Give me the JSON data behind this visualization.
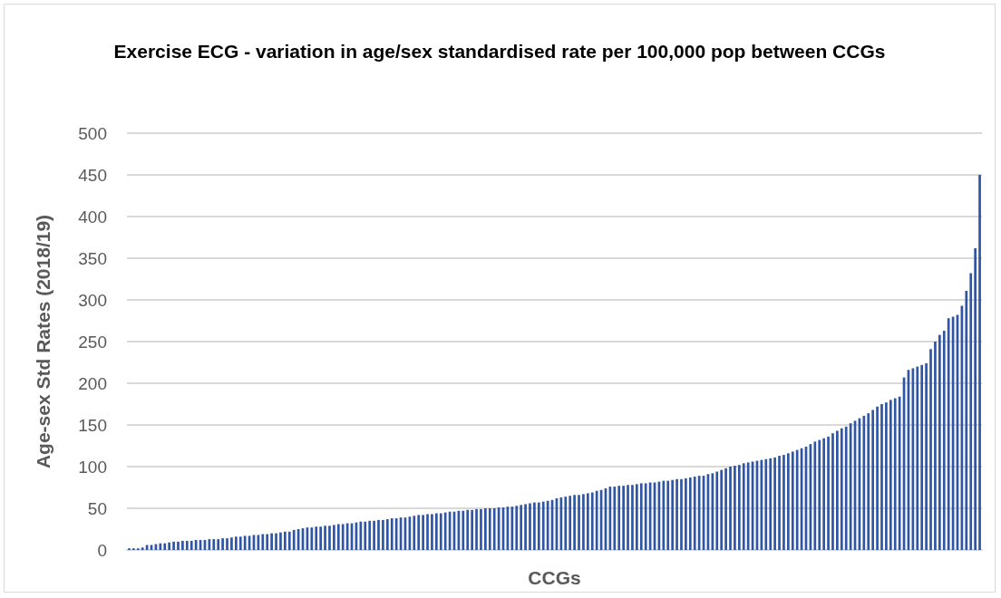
{
  "chart_data": {
    "type": "bar",
    "title": "Exercise ECG - variation in age/sex standardised rate per 100,000 pop between CCGs",
    "xlabel": "CCGs",
    "ylabel": "Age-sex Std Rates (2018/19)",
    "categories": [
      null,
      null,
      null,
      null,
      null,
      null,
      null,
      null,
      null,
      null,
      null,
      null,
      null,
      null,
      null,
      null,
      null,
      null,
      null,
      null,
      null,
      null,
      null,
      null,
      null,
      null,
      null,
      null,
      null,
      null,
      null,
      null,
      null,
      null,
      null,
      null,
      null,
      null,
      null,
      null,
      null,
      null,
      null,
      null,
      null,
      null,
      null,
      null,
      null,
      null,
      null,
      null,
      null,
      null,
      null,
      null,
      null,
      null,
      null,
      null,
      null,
      null,
      null,
      null,
      null,
      null,
      null,
      null,
      null,
      null,
      null,
      null,
      null,
      null,
      null,
      null,
      null,
      null,
      null,
      null,
      null,
      null,
      null,
      null,
      null,
      null,
      null,
      null,
      null,
      null,
      null,
      null,
      null,
      null,
      null,
      null,
      null,
      null,
      null,
      null,
      null,
      null,
      null,
      null,
      null,
      null,
      null,
      null,
      null,
      null,
      null,
      null,
      null,
      null,
      null,
      null,
      null,
      null,
      null,
      null,
      null,
      null,
      null,
      null,
      null,
      null,
      null,
      null,
      null,
      null,
      null,
      null,
      null,
      null,
      null,
      null,
      null,
      null,
      null,
      null,
      null,
      null,
      null,
      null,
      null,
      null,
      null,
      null,
      null,
      null,
      null,
      null,
      null,
      null,
      null,
      null,
      null,
      null,
      null,
      null,
      null,
      null,
      null,
      null,
      null,
      null,
      null,
      null,
      null,
      null,
      null,
      null,
      null,
      null,
      null,
      null,
      null,
      null,
      null,
      null,
      null,
      null,
      null,
      null,
      null,
      null,
      null,
      null,
      null,
      null,
      null,
      null
    ],
    "values": [
      2,
      2,
      2,
      3,
      6,
      6,
      7,
      8,
      8,
      9,
      10,
      10,
      11,
      11,
      11,
      12,
      12,
      12,
      13,
      13,
      13,
      14,
      14,
      15,
      16,
      16,
      17,
      17,
      18,
      18,
      19,
      19,
      20,
      20,
      21,
      22,
      22,
      24,
      25,
      26,
      27,
      27,
      28,
      28,
      29,
      29,
      30,
      31,
      31,
      32,
      32,
      33,
      34,
      34,
      35,
      35,
      36,
      36,
      37,
      38,
      38,
      39,
      39,
      40,
      41,
      42,
      42,
      43,
      43,
      44,
      44,
      45,
      46,
      46,
      47,
      47,
      48,
      48,
      49,
      49,
      50,
      50,
      50,
      51,
      51,
      52,
      52,
      53,
      54,
      55,
      56,
      57,
      57,
      58,
      59,
      60,
      62,
      63,
      64,
      65,
      66,
      66,
      67,
      68,
      69,
      71,
      72,
      74,
      76,
      76,
      77,
      77,
      78,
      78,
      79,
      80,
      80,
      81,
      81,
      82,
      83,
      83,
      84,
      85,
      85,
      86,
      87,
      88,
      89,
      89,
      91,
      92,
      94,
      96,
      98,
      100,
      101,
      102,
      104,
      105,
      106,
      107,
      108,
      109,
      110,
      111,
      113,
      114,
      116,
      118,
      120,
      122,
      124,
      127,
      130,
      132,
      134,
      136,
      140,
      143,
      146,
      148,
      152,
      155,
      158,
      161,
      164,
      168,
      172,
      175,
      177,
      180,
      182,
      184,
      207,
      216,
      218,
      220,
      222,
      224,
      241,
      250,
      258,
      263,
      278,
      280,
      282,
      293,
      311,
      332,
      362,
      450
    ],
    "color": "#2f55a4",
    "ylim": [
      0,
      500
    ],
    "yticks": [
      0,
      50,
      100,
      150,
      200,
      250,
      300,
      350,
      400,
      450,
      500
    ],
    "grid": "y",
    "tick_labels": "y"
  }
}
